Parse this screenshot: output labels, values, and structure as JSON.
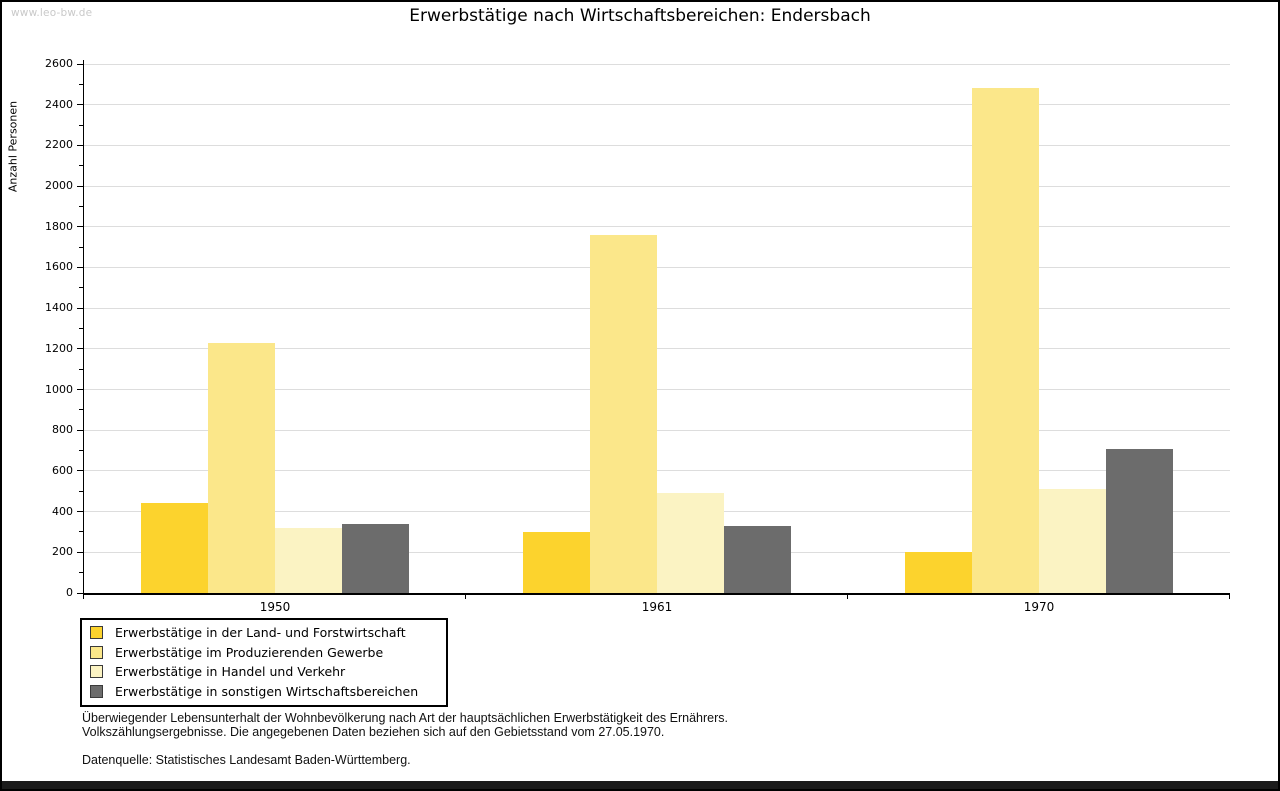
{
  "watermark": "www.leo-bw.de",
  "chart_data": {
    "type": "bar",
    "title": "Erwerbstätige nach Wirtschaftsbereichen: Endersbach",
    "xlabel": "",
    "ylabel": "Anzahl Personen",
    "categories": [
      "1950",
      "1961",
      "1970"
    ],
    "series": [
      {
        "name": "Erwerbstätige in der Land- und Forstwirtschaft",
        "color": "#FCD32D",
        "values": [
          440,
          300,
          200
        ]
      },
      {
        "name": "Erwerbstätige im Produzierenden Gewerbe",
        "color": "#FBE78A",
        "values": [
          1230,
          1760,
          2480
        ]
      },
      {
        "name": "Erwerbstätige in Handel und Verkehr",
        "color": "#FBF3C3",
        "values": [
          320,
          490,
          510
        ]
      },
      {
        "name": "Erwerbstätige in sonstigen Wirtschaftsbereichen",
        "color": "#6C6C6C",
        "values": [
          340,
          330,
          710
        ]
      }
    ],
    "ylim": [
      0,
      2600
    ],
    "ytick_step": 200,
    "ytick_minor_step": 100,
    "grid": true,
    "legend_position": "bottom-left"
  },
  "colors": {
    "grid": "#dddddd",
    "axis": "#000000",
    "watermark": "#c9c9c9"
  },
  "footer": {
    "line1": "Überwiegender Lebensunterhalt der Wohnbevölkerung nach Art der hauptsächlichen Erwerbstätigkeit des Ernährers.",
    "line2": "Volkszählungsergebnisse. Die angegebenen Daten beziehen sich auf den Gebietsstand vom 27.05.1970.",
    "source": "Datenquelle: Statistisches Landesamt Baden-Württemberg."
  }
}
